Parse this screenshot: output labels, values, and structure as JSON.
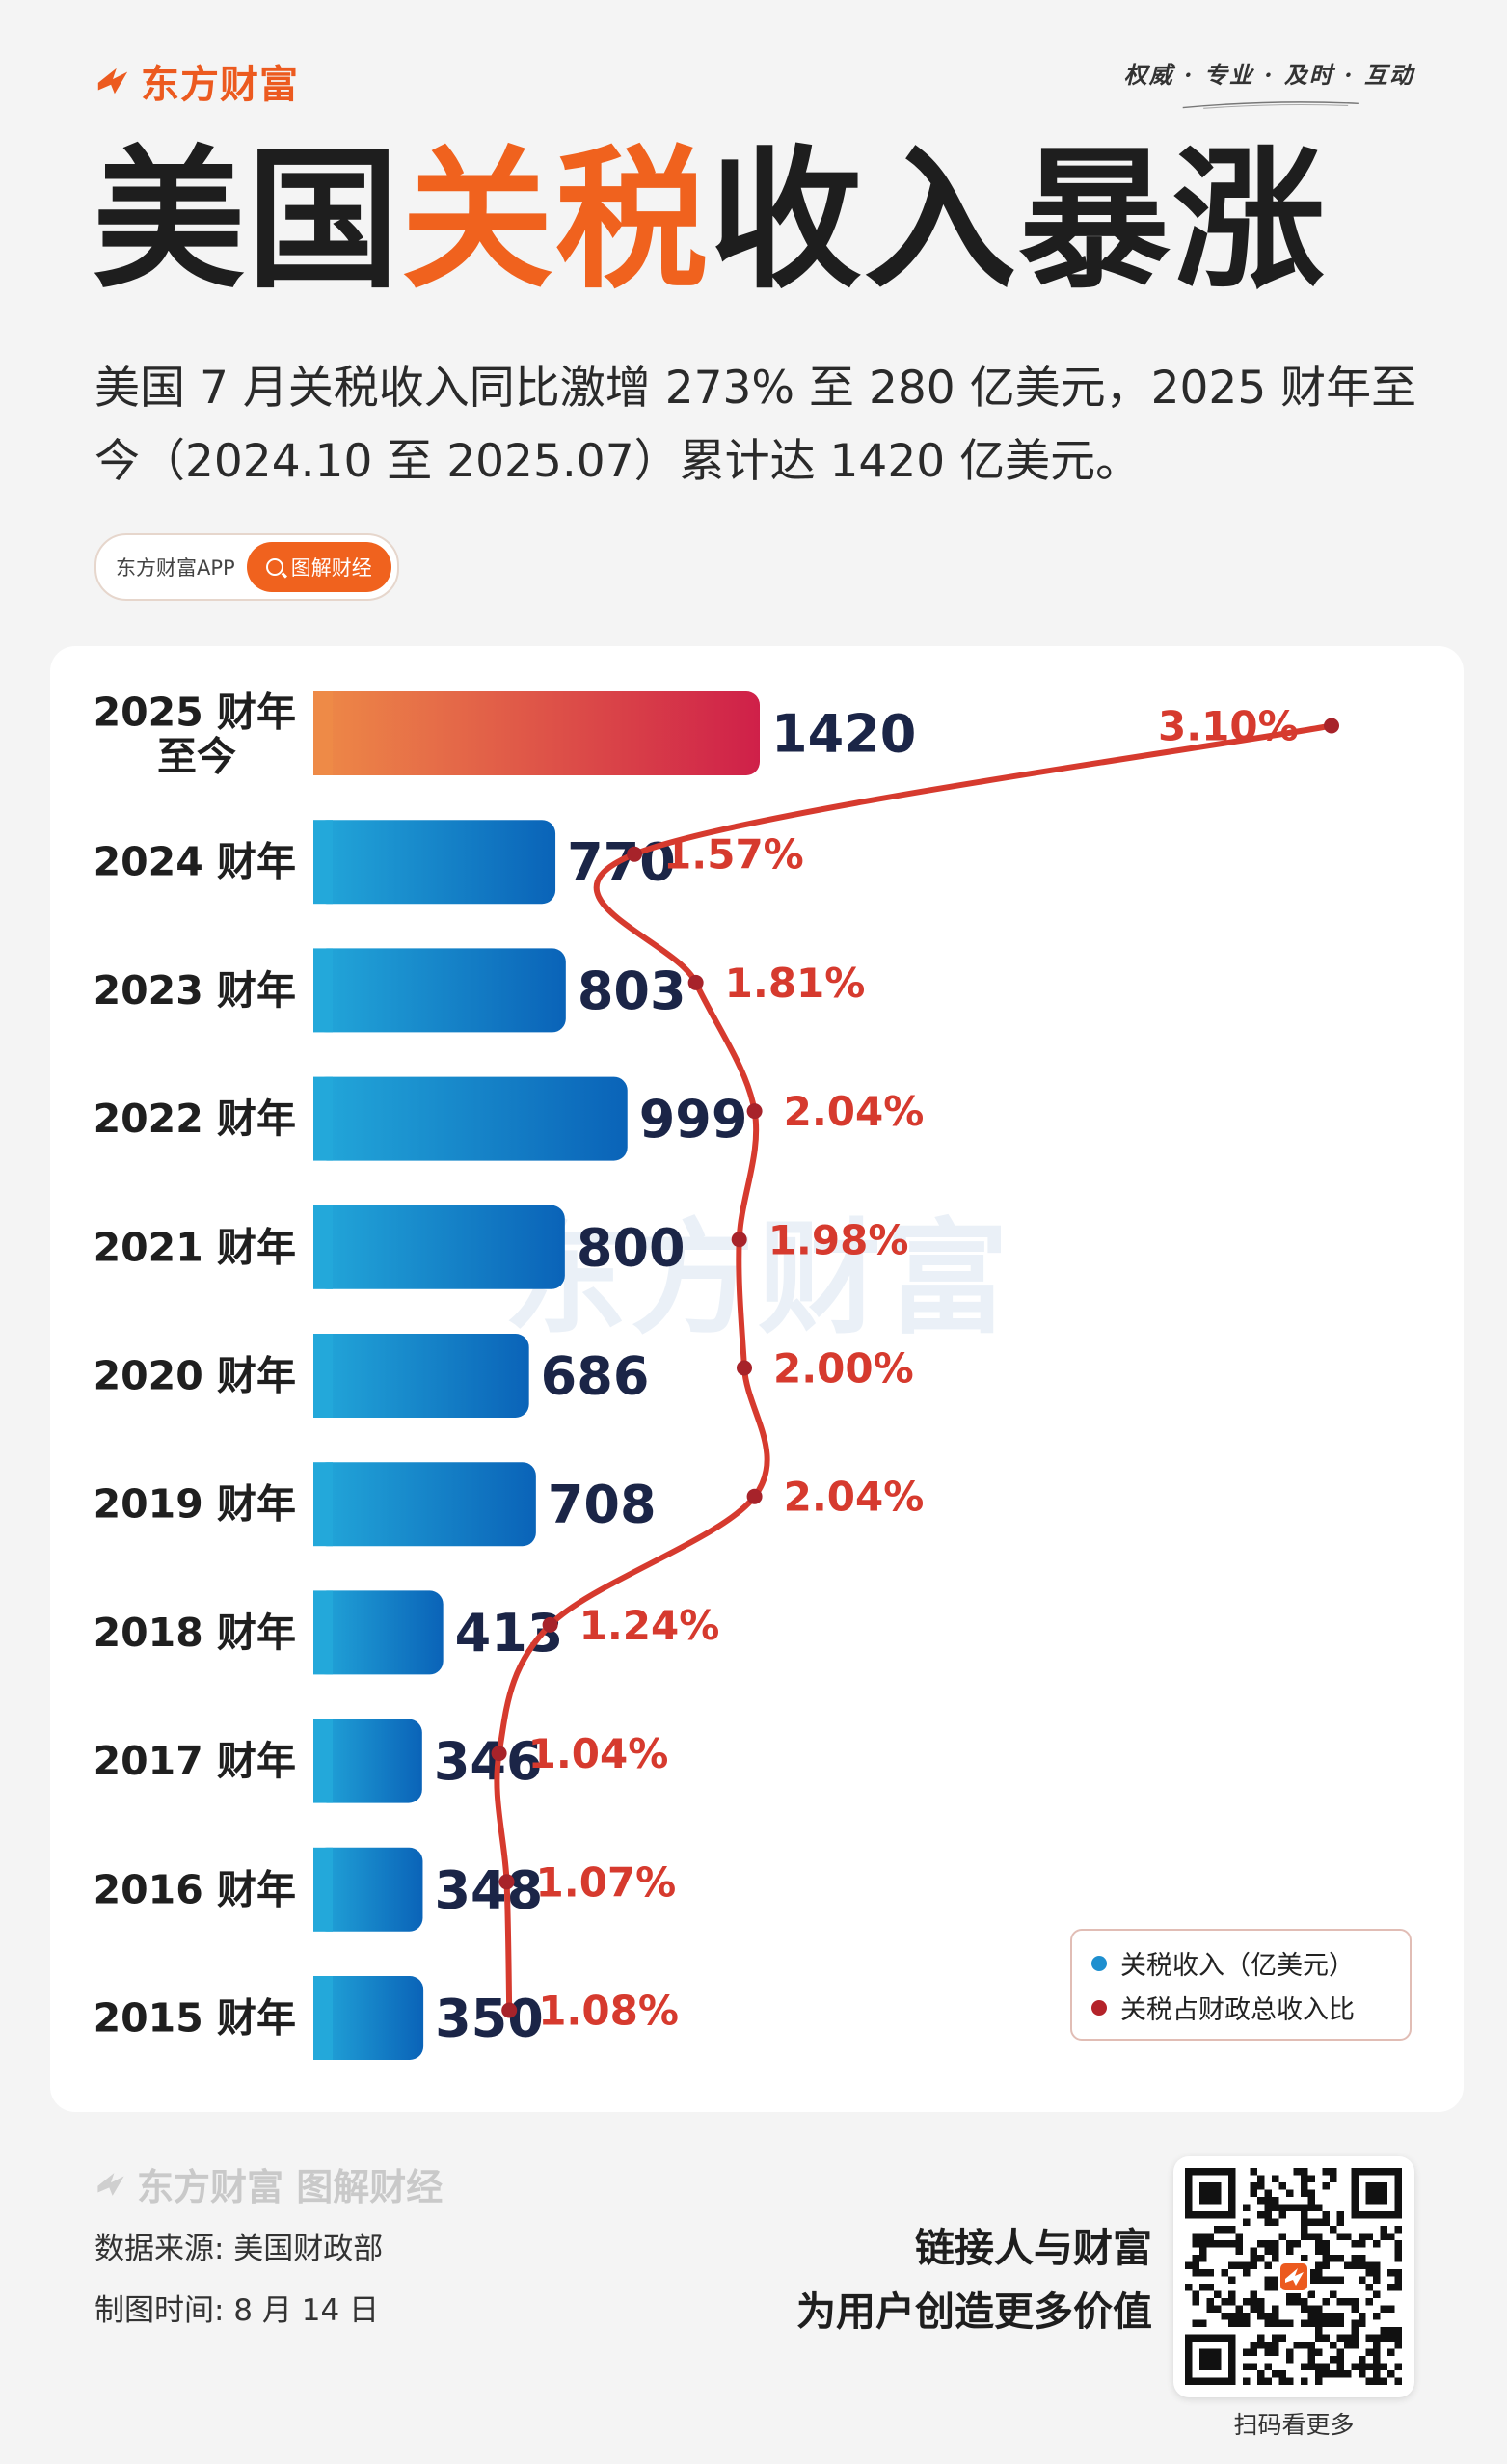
{
  "brand": {
    "name": "东方财富",
    "slogan": "权威 · 专业 · 及时 · 互动",
    "accent": "#f0621e"
  },
  "headline": {
    "part1": "美国",
    "highlight": "关税",
    "part2": "收入暴涨"
  },
  "subtitle": "美国 7 月关税收入同比激增 273% 至 280 亿美元，2025 财年至今（2024.10 至 2025.07）累计达 1420 亿美元。",
  "tag": {
    "app": "东方财富APP",
    "channel": "图解财经",
    "icon": "search-icon"
  },
  "watermark": "东方财富",
  "chart_data": {
    "type": "bar",
    "categories": [
      "2025 财年至今",
      "2024 财年",
      "2023 财年",
      "2022 财年",
      "2021 财年",
      "2020 财年",
      "2019 财年",
      "2018 财年",
      "2017 财年",
      "2016 财年",
      "2015 财年"
    ],
    "category_lines": [
      [
        "2025 财年",
        "至今"
      ],
      [
        "2024 财年"
      ],
      [
        "2023 财年"
      ],
      [
        "2022 财年"
      ],
      [
        "2021 财年"
      ],
      [
        "2020 财年"
      ],
      [
        "2019 财年"
      ],
      [
        "2018 财年"
      ],
      [
        "2017 财年"
      ],
      [
        "2016 财年"
      ],
      [
        "2015 财年"
      ]
    ],
    "series": [
      {
        "name": "关税收入（亿美元）",
        "type": "bar",
        "color": "#1e8fcf",
        "values": [
          1420,
          770,
          803,
          999,
          800,
          686,
          708,
          413,
          346,
          348,
          350
        ]
      },
      {
        "name": "关税占财政总收入比",
        "type": "line",
        "color": "#d63a2e",
        "values": [
          3.1,
          1.57,
          1.81,
          2.04,
          1.98,
          2.0,
          2.04,
          1.24,
          1.04,
          1.07,
          1.08
        ],
        "labels": [
          "3.10%",
          "1.57%",
          "1.81%",
          "2.04%",
          "1.98%",
          "2.00%",
          "2.04%",
          "1.24%",
          "1.04%",
          "1.07%",
          "1.08%"
        ]
      }
    ],
    "highlight_bar_colors": [
      "#ee8a47",
      "#cf2049"
    ],
    "legend": "bottom-right",
    "grid": false
  },
  "footer": {
    "logo": "东方财富 图解财经",
    "source": "数据来源: 美国财政部",
    "date": "制图时间: 8 月 14 日",
    "motto1": "链接人与财富",
    "motto2": "为用户创造更多价值",
    "qr_caption": "扫码看更多"
  }
}
